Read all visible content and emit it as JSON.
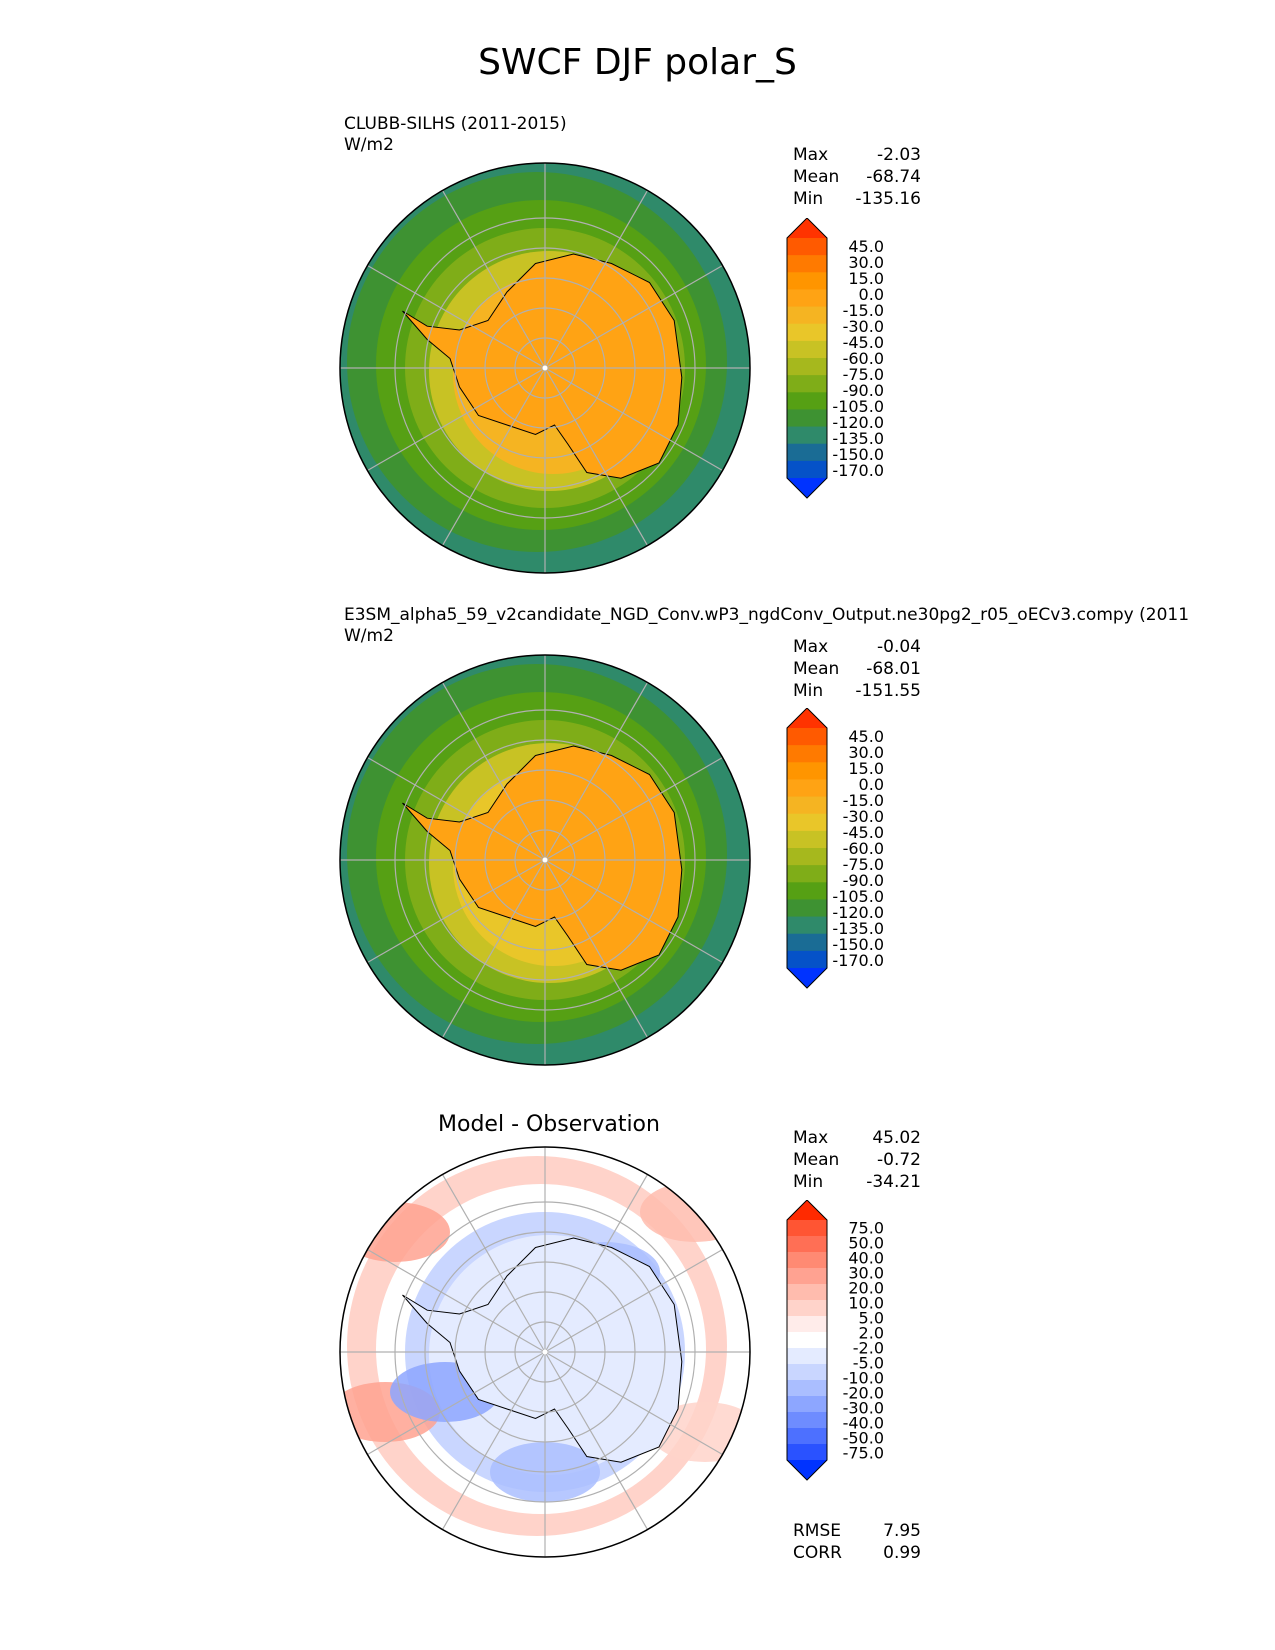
{
  "title": "SWCF DJF polar_S",
  "panels": [
    {
      "id": "test",
      "header_line1": "CLUBB-SILHS (2011-2015)",
      "header_line2": "W/m2",
      "stats": {
        "max_label": "Max",
        "max": "-2.03",
        "mean_label": "Mean",
        "mean": "-68.74",
        "min_label": "Min",
        "min": "-135.16"
      },
      "colorbar_labels": [
        "45.0",
        "30.0",
        "15.0",
        "0.0",
        "-15.0",
        "-30.0",
        "-45.0",
        "-60.0",
        "-75.0",
        "-90.0",
        "-105.0",
        "-120.0",
        "-135.0",
        "-150.0",
        "-170.0"
      ],
      "colorbar_colors": [
        "#ff3300",
        "#ff5a00",
        "#ff7a00",
        "#ff9500",
        "#ffa314",
        "#f5b422",
        "#e9c629",
        "#c8c224",
        "#a6b81d",
        "#7fad18",
        "#56a014",
        "#3e9232",
        "#2f8a6a",
        "#1a6c95",
        "#0552c8",
        "#0033ff"
      ]
    },
    {
      "id": "reference",
      "header_line1": "E3SM_alpha5_59_v2candidate_NGD_Conv.wP3_ngdConv_Output.ne30pg2_r05_oECv3.compy (2011",
      "header_line2": "W/m2",
      "stats": {
        "max_label": "Max",
        "max": "-0.04",
        "mean_label": "Mean",
        "mean": "-68.01",
        "min_label": "Min",
        "min": "-151.55"
      },
      "colorbar_labels": [
        "45.0",
        "30.0",
        "15.0",
        "0.0",
        "-15.0",
        "-30.0",
        "-45.0",
        "-60.0",
        "-75.0",
        "-90.0",
        "-105.0",
        "-120.0",
        "-135.0",
        "-150.0",
        "-170.0"
      ],
      "colorbar_colors": [
        "#ff3300",
        "#ff5a00",
        "#ff7a00",
        "#ff9500",
        "#ffa314",
        "#f5b422",
        "#e9c629",
        "#c8c224",
        "#a6b81d",
        "#7fad18",
        "#56a014",
        "#3e9232",
        "#2f8a6a",
        "#1a6c95",
        "#0552c8",
        "#0033ff"
      ]
    },
    {
      "id": "diff",
      "header_center": "Model - Observation",
      "stats": {
        "max_label": "Max",
        "max": "45.02",
        "mean_label": "Mean",
        "mean": "-0.72",
        "min_label": "Min",
        "min": "-34.21"
      },
      "colorbar_labels": [
        "75.0",
        "50.0",
        "40.0",
        "30.0",
        "20.0",
        "10.0",
        "5.0",
        "2.0",
        "-2.0",
        "-5.0",
        "-10.0",
        "-20.0",
        "-30.0",
        "-40.0",
        "-50.0",
        "-75.0"
      ],
      "colorbar_colors": [
        "#ff2a00",
        "#ff5533",
        "#ff6f55",
        "#ff8a73",
        "#ffa291",
        "#ffbcae",
        "#ffd3ca",
        "#ffecea",
        "#ffffff",
        "#e4ebff",
        "#c9d6ff",
        "#aabeff",
        "#8da6ff",
        "#6e8cff",
        "#4d70ff",
        "#2a52ff",
        "#0033ff"
      ],
      "footer": {
        "rmse_label": "RMSE",
        "rmse": "7.95",
        "corr_label": "CORR",
        "corr": "0.99"
      }
    }
  ],
  "chart_data": [
    {
      "type": "heatmap",
      "projection": "south-polar-stereographic",
      "title": "CLUBB-SILHS (2011-2015)",
      "units": "W/m2",
      "max": -2.03,
      "mean": -68.74,
      "min": -135.16,
      "levels": [
        -170,
        -150,
        -135,
        -120,
        -105,
        -90,
        -75,
        -60,
        -45,
        -30,
        -15,
        0,
        15,
        30,
        45
      ],
      "extend": "both"
    },
    {
      "type": "heatmap",
      "projection": "south-polar-stereographic",
      "title": "E3SM_alpha5_59_v2candidate_NGD_Conv.wP3_ngdConv_Output.ne30pg2_r05_oECv3.compy (2011",
      "units": "W/m2",
      "max": -0.04,
      "mean": -68.01,
      "min": -151.55,
      "levels": [
        -170,
        -150,
        -135,
        -120,
        -105,
        -90,
        -75,
        -60,
        -45,
        -30,
        -15,
        0,
        15,
        30,
        45
      ],
      "extend": "both"
    },
    {
      "type": "heatmap",
      "projection": "south-polar-stereographic",
      "title": "Model - Observation",
      "max": 45.02,
      "mean": -0.72,
      "min": -34.21,
      "rmse": 7.95,
      "corr": 0.99,
      "levels": [
        -75,
        -50,
        -40,
        -30,
        -20,
        -10,
        -5,
        -2,
        2,
        5,
        10,
        20,
        30,
        40,
        50,
        75
      ],
      "extend": "both"
    }
  ]
}
